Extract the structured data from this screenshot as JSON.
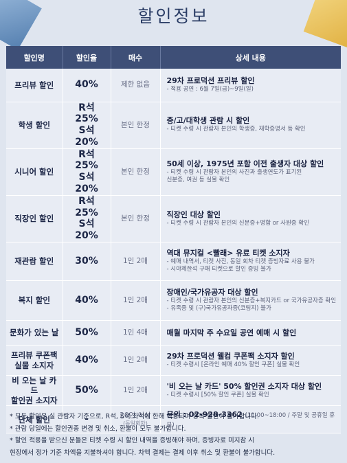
{
  "title": "할인정보",
  "headers": [
    "할인명",
    "할인율",
    "매수",
    "상세 내용"
  ],
  "rows": [
    {
      "name": [
        "프리뷰 할인"
      ],
      "rate": [
        "40%"
      ],
      "count": "제한 없음",
      "detail_title": "29차 프로덕션 프리뷰 할인",
      "detail_lines": [
        "- 적용 공연 : 6월 7일(금)~9일(일)"
      ]
    },
    {
      "name": [
        "학생 할인"
      ],
      "rate": [
        "R석 25%",
        "S석 20%"
      ],
      "count": "본인 한정",
      "detail_title": "중/고/대학생 관람 시 할인",
      "detail_lines": [
        "- 티켓 수령 시 관람자 본인의 학생증, 재학증명서 등 확인"
      ]
    },
    {
      "name": [
        "시니어 할인"
      ],
      "rate": [
        "R석 25%",
        "S석 20%"
      ],
      "count": "본인 한정",
      "detail_title": "50세 이상, 1975년 포함 이전 출생자 대상 할인",
      "detail_lines": [
        "- 티켓 수령 시 관람자 본인의 사진과 출생연도가 표기된",
        "  신분증, 여권 등 실물 확인"
      ]
    },
    {
      "name": [
        "직장인 할인"
      ],
      "rate": [
        "R석 25%",
        "S석 20%"
      ],
      "count": "본인 한정",
      "detail_title": "직장인 대상 할인",
      "detail_lines": [
        "- 티켓 수령 시 관람자 본인의 신분증+명함 or 사원증 확인"
      ]
    },
    {
      "name": [
        "재관람 할인"
      ],
      "rate": [
        "30%"
      ],
      "count": "1인 2매",
      "detail_title": "역대 뮤지컬 <빨래> 유료 티켓 소지자",
      "detail_lines": [
        "- 예매 내역서, 티켓 사진, 동일 회차 티켓 증빙자료 사용 불가",
        "- 시야제한석 구매 티켓으로 할인 증빙 불가"
      ]
    },
    {
      "name": [
        "복지 할인"
      ],
      "rate": [
        "40%"
      ],
      "count": "1인 2매",
      "detail_title": "장애인/국가유공자 대상 할인",
      "detail_lines": [
        "- 티켓 수령 시 관람자 본인의 신분증+복지카드 or 국가유공자증 확인",
        "- 유족증 및 (구)국가유공자증(코팅지) 불가"
      ]
    },
    {
      "name": [
        "문화가 있는 날"
      ],
      "rate": [
        "50%"
      ],
      "count": "1인 4매",
      "detail_title": "매월 마지막 주 수요일 공연 예매 시 할인",
      "detail_lines": []
    },
    {
      "name": [
        "프리뷰 쿠폰팩",
        "실물 소지자"
      ],
      "rate": [
        "40%"
      ],
      "count": "1인 2매",
      "detail_title": "29차 프로덕션 웰컴 쿠폰팩 소지자 할인",
      "detail_lines": [
        "- 티켓 수령시 [온라인 예매 40% 할인 쿠폰] 실물 확인"
      ]
    },
    {
      "name": [
        "비 오는 날 카드",
        "할인권 소지자"
      ],
      "rate": [
        "50%"
      ],
      "count": "1인 2매",
      "detail_title": "'비 오는 날 카드' 50% 할인권 소지자 대상 할인",
      "detail_lines": [
        "- 티켓 수령시 [50% 할인 쿠폰] 실물 확인"
      ]
    },
    {
      "name": [
        "단체 할인"
      ],
      "rate": [
        "-"
      ],
      "count": "20인 이상",
      "count_sub": "(동일회차)",
      "detail_title": "문의 : 02-928-3362",
      "detail_title_note": "(11:00~18:00 / 주말 및 공휴일 휴무)",
      "detail_lines": []
    }
  ],
  "notes": [
    "* 모든 할인은 실 관람자 기준으로, R석, S석 좌석에 한해 적용되며 중복 할인이 불가합니다.",
    "* 관람 당일에는 할인권종 변경 및 취소, 환불이 모두 불가합니다.",
    "* 할인 적용을 받으신 분들은 티켓 수령 시 할인 내역을 증빙해야 하며, 증빙자료 미지참 시",
    "  현장에서 정가 기준 차액을 지불하셔야 합니다. 차액 결제는 결제 이후 취소 및 환불이 불가합니다."
  ],
  "colors": {
    "header_bg": "#3e4f77",
    "cell_bg": "#e8ecf4",
    "page_bg": "#dfe5ef"
  }
}
